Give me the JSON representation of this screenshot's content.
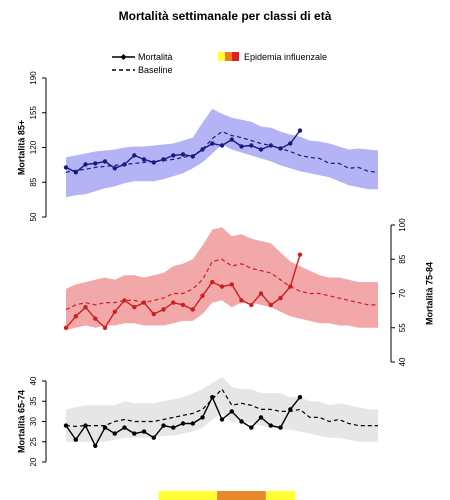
{
  "title": "Mortalità settimanale per classi di età",
  "legend": {
    "mortality_label": "Mortalità",
    "baseline_label": "Baseline",
    "epidemic_label": "Epidemia influenzale"
  },
  "colors": {
    "panel_85": {
      "band": "#b3b3f5",
      "line": "#1a1a80",
      "baseline": "#1a1a80"
    },
    "panel_75": {
      "band": "#f2a8a8",
      "line": "#cc1f1f",
      "baseline": "#cc1f1f"
    },
    "panel_65": {
      "band": "#e6e6e6",
      "line": "#000000",
      "baseline": "#000000"
    },
    "epidemic_yellow": "#ffff33",
    "epidemic_orange": "#e8892c"
  },
  "chart_data": [
    {
      "type": "line",
      "ylabel": "Mortalità 85+",
      "yaxis_side": "left",
      "ylim": [
        50,
        190
      ],
      "yticks": [
        50,
        85,
        120,
        155,
        190
      ],
      "x": [
        1,
        2,
        3,
        4,
        5,
        6,
        7,
        8,
        9,
        10,
        11,
        12,
        13,
        14,
        15,
        16,
        17,
        18,
        19,
        20,
        21,
        22,
        23,
        24,
        25,
        26,
        27,
        28,
        29,
        30,
        31,
        32,
        33
      ],
      "series": [
        {
          "role": "observed",
          "x": [
            1,
            2,
            3,
            4,
            5,
            6,
            7,
            8,
            9,
            10,
            11,
            12,
            13,
            14,
            15,
            16,
            17,
            18,
            19,
            20,
            21,
            22,
            23,
            24,
            25
          ],
          "values": [
            100,
            95,
            103,
            104,
            106,
            99,
            103,
            112,
            108,
            105,
            108,
            112,
            113,
            111,
            118,
            124,
            122,
            128,
            121,
            122,
            118,
            122,
            119,
            124,
            137
          ]
        },
        {
          "role": "baseline",
          "values": [
            95,
            97,
            98,
            100,
            101,
            102,
            103,
            104,
            105,
            106,
            107,
            108,
            110,
            112,
            118,
            129,
            136,
            132,
            130,
            127,
            124,
            122,
            119,
            116,
            112,
            110,
            109,
            104,
            104,
            99,
            100,
            96,
            95
          ]
        },
        {
          "role": "band_upper",
          "values": [
            110,
            112,
            114,
            116,
            117,
            118,
            120,
            121,
            121,
            122,
            123,
            124,
            127,
            130,
            145,
            159,
            154,
            150,
            148,
            146,
            141,
            140,
            136,
            133,
            131,
            127,
            126,
            124,
            121,
            118,
            119,
            118,
            117
          ]
        },
        {
          "role": "band_lower",
          "values": [
            70,
            72,
            73,
            76,
            79,
            81,
            84,
            86,
            86,
            86,
            88,
            91,
            94,
            99,
            105,
            114,
            123,
            118,
            115,
            112,
            109,
            106,
            102,
            99,
            96,
            94,
            92,
            90,
            86,
            82,
            80,
            78,
            78
          ]
        }
      ]
    },
    {
      "type": "line",
      "ylabel": "Mortalità 75-84",
      "yaxis_side": "right",
      "ylim": [
        40,
        100
      ],
      "yticks": [
        40,
        55,
        70,
        85,
        100
      ],
      "x": [
        1,
        2,
        3,
        4,
        5,
        6,
        7,
        8,
        9,
        10,
        11,
        12,
        13,
        14,
        15,
        16,
        17,
        18,
        19,
        20,
        21,
        22,
        23,
        24,
        25,
        26,
        27,
        28,
        29,
        30,
        31,
        32,
        33
      ],
      "series": [
        {
          "role": "observed",
          "x": [
            1,
            2,
            3,
            4,
            5,
            6,
            7,
            8,
            9,
            10,
            11,
            12,
            13,
            14,
            15,
            16,
            17,
            18,
            19,
            20,
            21,
            22,
            23,
            24,
            25
          ],
          "values": [
            55,
            60,
            64,
            59,
            55,
            62,
            67,
            64,
            66,
            61,
            63,
            66,
            65,
            63,
            69,
            75,
            73,
            74,
            67,
            65,
            70,
            65,
            68,
            73,
            87
          ]
        },
        {
          "role": "baseline",
          "values": [
            63,
            65,
            66,
            65,
            66,
            66,
            67,
            67,
            66,
            67,
            68,
            70,
            70,
            72,
            76,
            84,
            85,
            82,
            83,
            81,
            80,
            79,
            76,
            73,
            71,
            70,
            70,
            69,
            68,
            67,
            66,
            65,
            65
          ]
        },
        {
          "role": "band_upper",
          "values": [
            72,
            74,
            75,
            76,
            77,
            76,
            78,
            78,
            77,
            78,
            79,
            82,
            83,
            85,
            91,
            98,
            99,
            95,
            96,
            94,
            93,
            92,
            88,
            84,
            82,
            80,
            78,
            77,
            77,
            76,
            75,
            75,
            75
          ]
        },
        {
          "role": "band_lower",
          "values": [
            54,
            55,
            56,
            55,
            56,
            56,
            57,
            57,
            56,
            56,
            56,
            57,
            58,
            58,
            61,
            66,
            67,
            64,
            66,
            66,
            65,
            64,
            62,
            60,
            59,
            58,
            57,
            57,
            56,
            56,
            55,
            55,
            55
          ]
        }
      ]
    },
    {
      "type": "line",
      "ylabel": "Mortalità 65-74",
      "yaxis_side": "left",
      "ylim": [
        20,
        40
      ],
      "yticks": [
        20,
        25,
        30,
        35,
        40
      ],
      "x": [
        1,
        2,
        3,
        4,
        5,
        6,
        7,
        8,
        9,
        10,
        11,
        12,
        13,
        14,
        15,
        16,
        17,
        18,
        19,
        20,
        21,
        22,
        23,
        24,
        25,
        26,
        27,
        28,
        29,
        30,
        31,
        32,
        33
      ],
      "series": [
        {
          "role": "observed",
          "x": [
            1,
            2,
            3,
            4,
            5,
            6,
            7,
            8,
            9,
            10,
            11,
            12,
            13,
            14,
            15,
            16,
            17,
            18,
            19,
            20,
            21,
            22,
            23,
            24,
            25
          ],
          "values": [
            29,
            25.5,
            29,
            24,
            28.5,
            27,
            28.5,
            27,
            27.5,
            26,
            29,
            28.5,
            29.5,
            29.5,
            31,
            36,
            30.5,
            32.5,
            30,
            28.5,
            31,
            29,
            28.5,
            33,
            36
          ]
        },
        {
          "role": "baseline",
          "values": [
            29,
            28.8,
            29,
            29,
            29,
            30,
            30.5,
            30,
            30,
            30,
            30.5,
            31,
            31.5,
            32,
            33,
            35.5,
            38,
            34,
            34.5,
            34,
            33,
            33,
            32.5,
            32.5,
            33,
            31,
            31,
            30,
            30.5,
            29.5,
            29,
            29,
            29
          ]
        },
        {
          "role": "band_upper",
          "values": [
            33,
            33.5,
            34,
            34,
            34,
            34,
            35,
            34.5,
            34.5,
            34.5,
            35,
            35.5,
            36,
            37,
            38,
            39.5,
            41,
            38.5,
            38,
            38,
            37,
            37,
            37,
            36,
            36,
            35,
            35,
            34,
            34.5,
            34,
            33.5,
            33,
            33
          ]
        },
        {
          "role": "band_lower",
          "values": [
            25,
            25,
            25,
            25,
            25,
            25.5,
            26,
            26,
            26,
            26,
            26.5,
            26.5,
            27,
            27.5,
            28.5,
            30.5,
            32,
            30,
            30,
            29.5,
            29,
            28.5,
            28,
            28,
            27.5,
            27,
            26.5,
            26,
            26,
            25.5,
            25,
            25,
            25
          ]
        }
      ]
    }
  ],
  "epidemic_bar": [
    {
      "from": 10.5,
      "to": 16.5,
      "color": "yellow"
    },
    {
      "from": 16.5,
      "to": 21.5,
      "color": "orange"
    },
    {
      "from": 21.5,
      "to": 24.5,
      "color": "yellow"
    }
  ]
}
